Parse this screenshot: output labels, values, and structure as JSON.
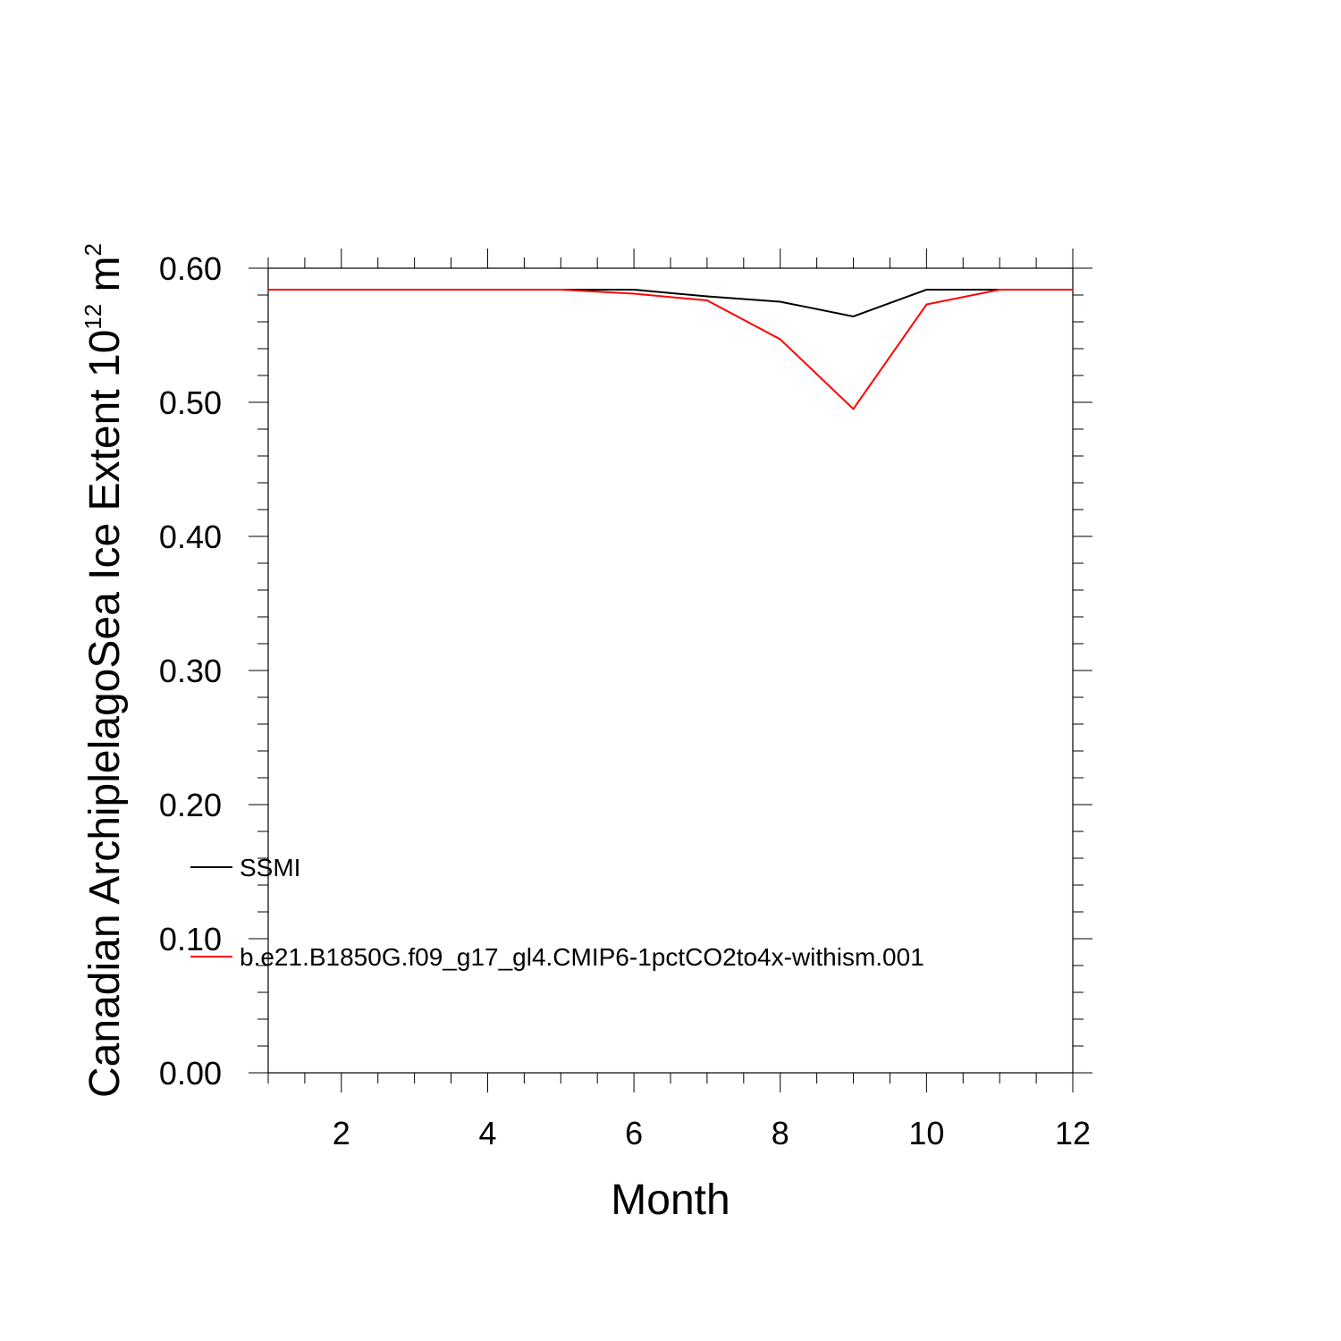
{
  "chart_data": {
    "type": "line",
    "title": "",
    "xlabel": "Month",
    "ylabel_parts": {
      "main": "Canadian ArchiplelagoSea Ice Extent 10",
      "exp1": "12",
      "unit": " m",
      "exp2": "2"
    },
    "xlim": [
      1,
      12
    ],
    "ylim": [
      0,
      0.6
    ],
    "xticks": [
      2,
      4,
      6,
      8,
      10,
      12
    ],
    "yticks": [
      0.0,
      0.1,
      0.2,
      0.3,
      0.4,
      0.5,
      0.6
    ],
    "ytick_labels": [
      "0.00",
      "0.10",
      "0.20",
      "0.30",
      "0.40",
      "0.50",
      "0.60"
    ],
    "x": [
      1,
      2,
      3,
      4,
      5,
      6,
      7,
      8,
      9,
      10,
      11,
      12
    ],
    "series": [
      {
        "name": "SSMI",
        "color": "#000000",
        "values": [
          0.584,
          0.584,
          0.584,
          0.584,
          0.584,
          0.584,
          0.579,
          0.575,
          0.564,
          0.584,
          0.584,
          0.584
        ]
      },
      {
        "name": "b.e21.B1850G.f09_g17_gl4.CMIP6-1pctCO2to4x-withism.001",
        "color": "#ff0000",
        "values": [
          0.584,
          0.584,
          0.584,
          0.584,
          0.584,
          0.581,
          0.576,
          0.547,
          0.495,
          0.573,
          0.584,
          0.584
        ]
      }
    ],
    "grid": false,
    "legend_position": "lower-left inside"
  }
}
